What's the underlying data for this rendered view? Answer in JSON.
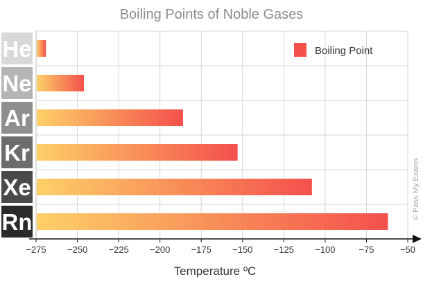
{
  "chart_data": {
    "type": "bar",
    "orientation": "horizontal",
    "title": "Boiling Points of Noble Gases",
    "xlabel": "Temperature ºC",
    "ylabel": "",
    "categories": [
      "He",
      "Ne",
      "Ar",
      "Kr",
      "Xe",
      "Rn"
    ],
    "series": [
      {
        "name": "Boiling Point",
        "values": [
          -269,
          -246,
          -186,
          -153,
          -108,
          -62
        ]
      }
    ],
    "xlim": [
      -275,
      -50
    ],
    "xticks": [
      -275,
      -250,
      -225,
      -200,
      -175,
      -150,
      -125,
      -100,
      -75,
      -50
    ],
    "grid": true,
    "legend": "top-right",
    "colors": {
      "bar_start": "#fdd067",
      "bar_end": "#f4504c",
      "legend_swatch": "#f4504c",
      "label_boxes": [
        "#d8d8d8",
        "#b5b5b5",
        "#8f8f8f",
        "#6c6c6c",
        "#4a4a4a",
        "#2a2a2a"
      ],
      "label_text": [
        "#222222",
        "#ffffff",
        "#ffffff",
        "#ffffff",
        "#ffffff",
        "#ffffff"
      ]
    }
  },
  "watermark": "© Pass My Exams"
}
